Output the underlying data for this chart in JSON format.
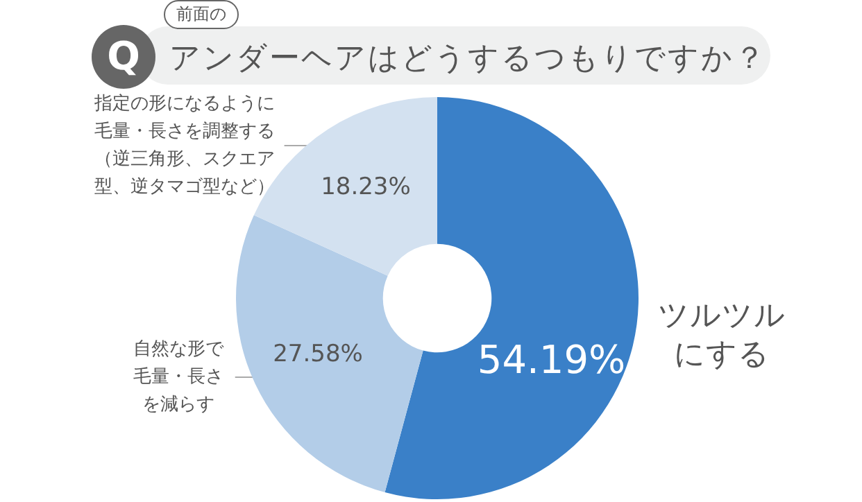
{
  "chart_data": {
    "type": "donut",
    "title": "アンダーヘアはどうするつもりですか？",
    "subtitle": "前面の",
    "annotations": [
      "Q"
    ],
    "categories": [
      "ツルツルにする",
      "自然な形で毛量・長さを減らす",
      "指定の形になるように毛量・長さを調整する（逆三角形、スクエア型、逆タマゴ型など）"
    ],
    "values": [
      54.19,
      27.58,
      18.23
    ],
    "colors": [
      "#3a80c8",
      "#b3cde8",
      "#d3e1f0"
    ],
    "value_labels": [
      "54.19%",
      "27.58%",
      "18.23%"
    ],
    "legend": false
  }
}
